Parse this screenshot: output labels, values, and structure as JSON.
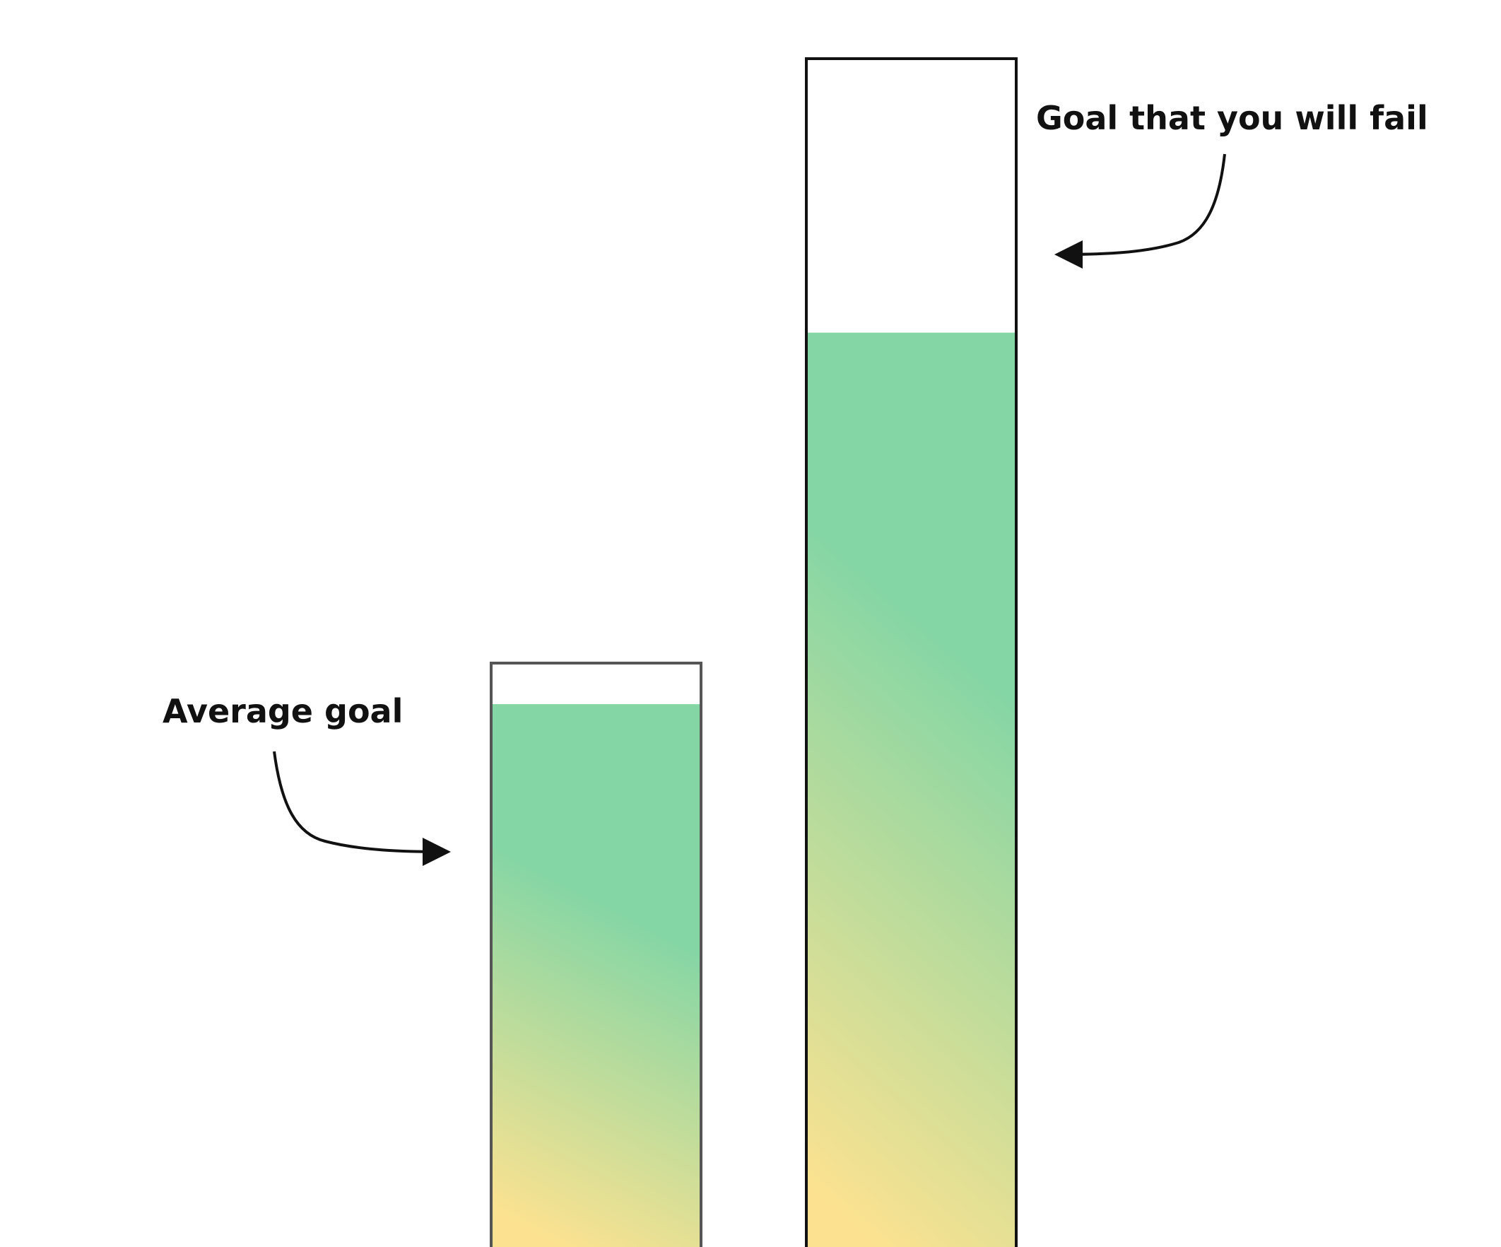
{
  "labels": {
    "average_goal": "Average goal",
    "stretch_goal": "Goal that you will fail"
  },
  "bars": [
    {
      "name": "average-goal",
      "fill_fraction": 0.93
    },
    {
      "name": "stretch-goal",
      "fill_fraction": 0.77
    }
  ],
  "colors": {
    "fill_top": "#84d6a5",
    "fill_bottom": "#fce290",
    "outline_left": "#555555",
    "outline_right": "#111111",
    "arrow": "#111111"
  }
}
